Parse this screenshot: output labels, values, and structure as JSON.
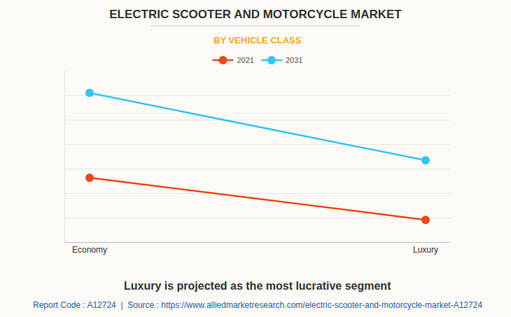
{
  "chart_data": {
    "type": "line",
    "title": "ELECTRIC SCOOTER AND MOTORCYCLE MARKET",
    "subtitle": "BY VEHICLE CLASS",
    "categories": [
      "Economy",
      "Luxury"
    ],
    "series": [
      {
        "name": "2021",
        "color": "#e8491d",
        "values": [
          2.63,
          0.91
        ]
      },
      {
        "name": "2031",
        "color": "#36c5f4",
        "values": [
          6.09,
          3.34
        ]
      }
    ],
    "ylim": [
      0,
      7
    ],
    "yticks": [
      0,
      1,
      2,
      3,
      4,
      5,
      6,
      7
    ],
    "grid": true,
    "legend": "top",
    "tick_labels": "x",
    "marker": "circle",
    "annotations": [
      "Luxury is projected as the most lucrative segment",
      "Report Code : A12724  |  Source : https://www.alliedmarketresearch.com/electric-scooter-and-motorcycle-market-A12724"
    ]
  }
}
